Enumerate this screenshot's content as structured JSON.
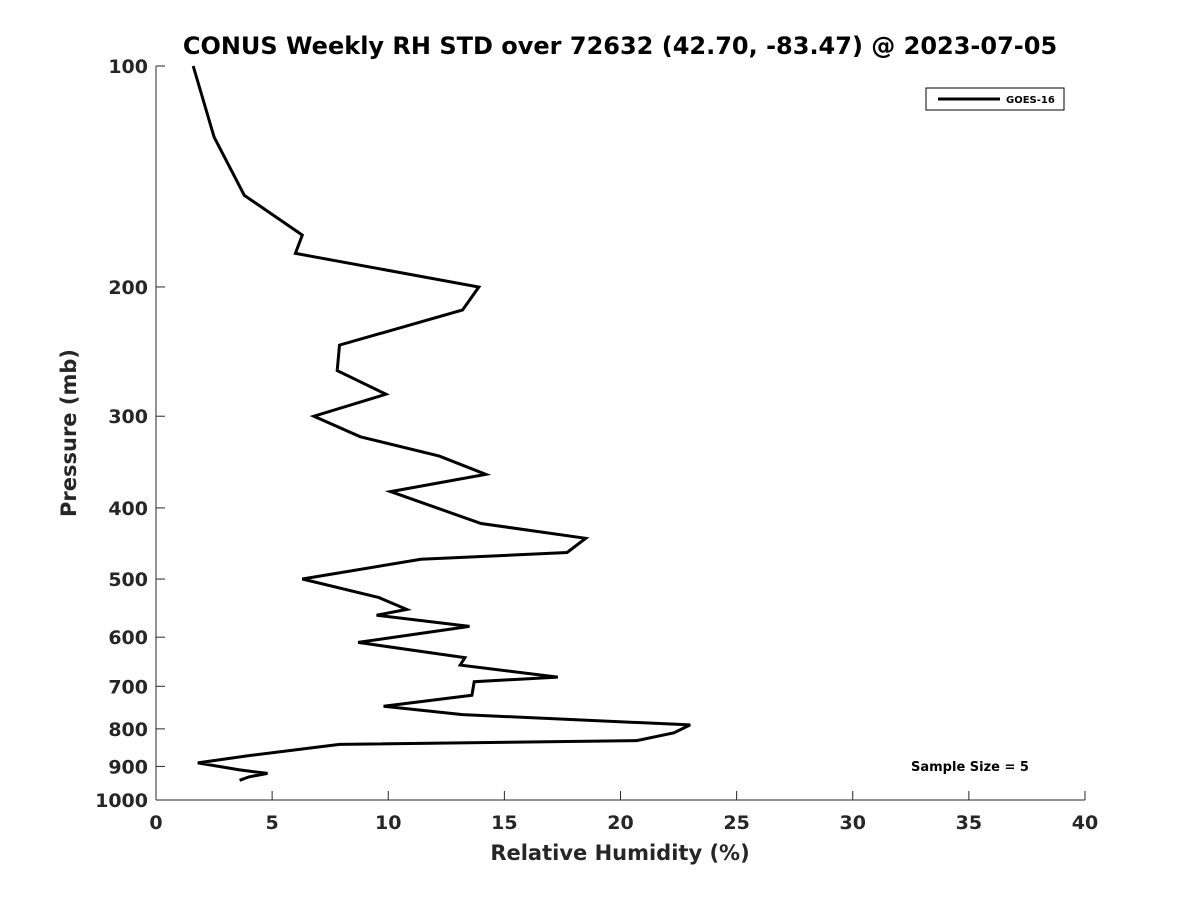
{
  "chart_data": {
    "type": "line",
    "title": "CONUS Weekly RH STD over 72632 (42.70, -83.47) @ 2023-07-05",
    "xlabel": "Relative Humidity (%)",
    "ylabel": "Pressure (mb)",
    "xlim": [
      0,
      40
    ],
    "ylim": [
      100,
      1000
    ],
    "yscale": "log",
    "y_reversed": true,
    "xticks": [
      0,
      5,
      10,
      15,
      20,
      25,
      30,
      35,
      40
    ],
    "yticks": [
      100,
      200,
      300,
      400,
      500,
      600,
      700,
      800,
      900,
      1000
    ],
    "grid": false,
    "legend_position": "top-right",
    "series": [
      {
        "name": "GOES-16",
        "color": "#000000",
        "x": [
          1.6,
          2.5,
          3.8,
          6.3,
          6.0,
          13.9,
          13.2,
          7.9,
          7.8,
          9.9,
          6.8,
          8.8,
          12.2,
          14.2,
          10.1,
          14.0,
          18.5,
          17.7,
          11.4,
          6.3,
          9.6,
          10.8,
          9.5,
          13.5,
          8.7,
          13.3,
          13.1,
          17.3,
          13.7,
          13.6,
          9.8,
          13.2,
          23.0,
          22.3,
          20.7,
          7.9,
          4.0,
          1.8,
          3.6,
          4.8,
          4.0,
          3.6
        ],
        "y": [
          100,
          125,
          150,
          170,
          180,
          200,
          215,
          240,
          260,
          280,
          300,
          320,
          340,
          360,
          380,
          420,
          440,
          460,
          470,
          500,
          530,
          550,
          560,
          580,
          610,
          640,
          655,
          680,
          690,
          720,
          745,
          765,
          790,
          810,
          830,
          840,
          870,
          890,
          910,
          920,
          930,
          940
        ]
      }
    ],
    "annotation": "Sample Size = 5"
  }
}
